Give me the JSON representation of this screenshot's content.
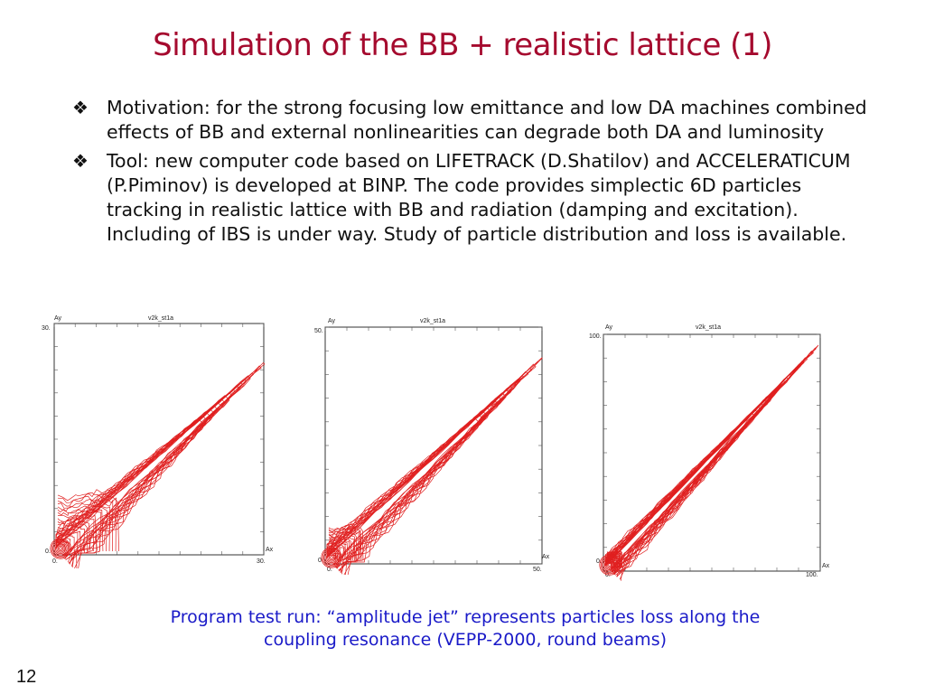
{
  "slide": {
    "title": "Simulation of the BB + realistic lattice (1)",
    "bullets": [
      {
        "marker": "❖",
        "text": "Motivation: for the strong focusing low emittance and low DA machines combined effects of BB and external nonlinearities can degrade both DA and luminosity"
      },
      {
        "marker": "❖",
        "text": "Tool: new computer code based on LIFETRACK (D.Shatilov) and ACCELERATICUM (P.Piminov) is developed at BINP. The code provides simplectic 6D particles tracking in realistic lattice with BB and radiation (damping and excitation). Including of IBS is under way. Study of particle distribution and loss is available."
      }
    ],
    "caption_line1": "Program test run: “amplitude jet” represents particles loss along the",
    "caption_line2": "coupling resonance (VEPP-2000, round beams)",
    "slide_number": "12"
  },
  "plots": [
    {
      "title": "v2k_st1a",
      "ylabel": "Ay",
      "xlabel": "Ax",
      "y_max_label": "30.",
      "y_min_label": "0.",
      "x_min_label": "0.",
      "x_max_label": "30."
    },
    {
      "title": "v2k_st1a",
      "ylabel": "Ay",
      "xlabel": "Ax",
      "y_max_label": "50.",
      "y_min_label": "0.",
      "x_min_label": "0.",
      "x_max_label": "50."
    },
    {
      "title": "v2k_st1a",
      "ylabel": "Ay",
      "xlabel": "Ax",
      "y_max_label": "100.",
      "y_min_label": "0.",
      "x_min_label": "0.",
      "x_max_label": "100."
    }
  ],
  "colors": {
    "title": "#a50a2e",
    "caption": "#1a1ac8",
    "contour": "#e02020",
    "text": "#111111"
  }
}
